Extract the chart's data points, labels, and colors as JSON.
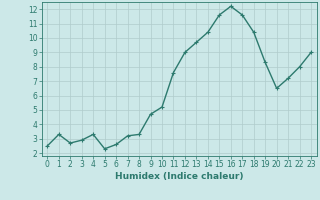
{
  "x": [
    0,
    1,
    2,
    3,
    4,
    5,
    6,
    7,
    8,
    9,
    10,
    11,
    12,
    13,
    14,
    15,
    16,
    17,
    18,
    19,
    20,
    21,
    22,
    23
  ],
  "y": [
    2.5,
    3.3,
    2.7,
    2.9,
    3.3,
    2.3,
    2.6,
    3.2,
    3.3,
    4.7,
    5.2,
    7.6,
    9.0,
    9.7,
    10.4,
    11.6,
    12.2,
    11.6,
    10.4,
    8.3,
    6.5,
    7.2,
    8.0,
    9.0
  ],
  "line_color": "#2d7a6e",
  "marker": "+",
  "marker_size": 3,
  "bg_color": "#cce8e8",
  "grid_color": "#b0cccc",
  "xlabel": "Humidex (Indice chaleur)",
  "xlabel_color": "#2d7a6e",
  "tick_color": "#2d7a6e",
  "ylim": [
    1.8,
    12.5
  ],
  "xlim": [
    -0.5,
    23.5
  ],
  "yticks": [
    2,
    3,
    4,
    5,
    6,
    7,
    8,
    9,
    10,
    11,
    12
  ],
  "xticks": [
    0,
    1,
    2,
    3,
    4,
    5,
    6,
    7,
    8,
    9,
    10,
    11,
    12,
    13,
    14,
    15,
    16,
    17,
    18,
    19,
    20,
    21,
    22,
    23
  ],
  "linewidth": 1.0,
  "spine_color": "#2d7a6e",
  "tick_fontsize": 5.5,
  "xlabel_fontsize": 6.5
}
